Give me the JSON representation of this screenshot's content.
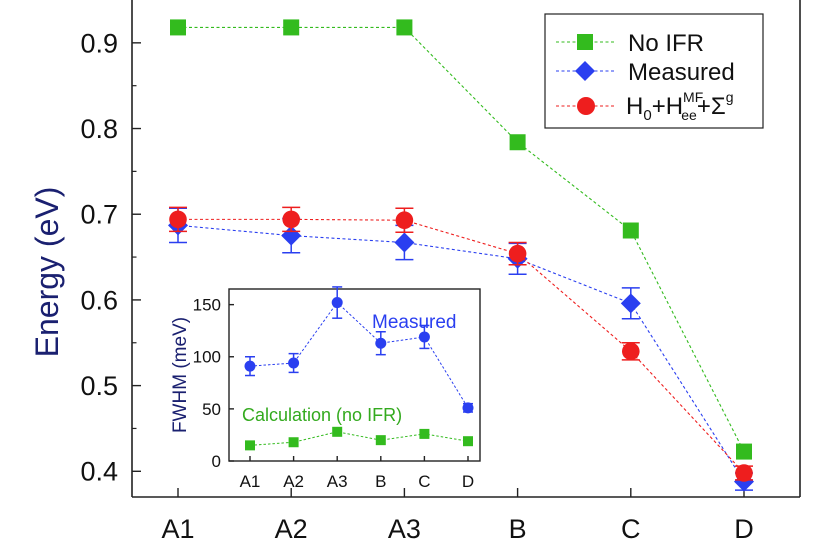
{
  "chart_data": [
    {
      "type": "line",
      "title": "",
      "xlabel": "",
      "ylabel": "Energy (eV)",
      "categories": [
        "A1",
        "A2",
        "A3",
        "B",
        "C",
        "D"
      ],
      "ylim": [
        0.37,
        0.95
      ],
      "yticks": [
        "0.4",
        "0.5",
        "0.6",
        "0.7",
        "0.8",
        "0.9"
      ],
      "ytick_values": [
        0.4,
        0.5,
        0.6,
        0.7,
        0.8,
        0.9
      ],
      "legend_position": "top-right",
      "series": [
        {
          "name": "No IFR",
          "marker": "square",
          "color": "#33bb1e",
          "values": [
            0.918,
            0.918,
            0.918,
            0.784,
            0.681,
            0.423
          ],
          "errors": []
        },
        {
          "name": "Measured",
          "marker": "diamond",
          "color": "#2a3ff0",
          "values": [
            0.687,
            0.675,
            0.667,
            0.648,
            0.596,
            0.388
          ],
          "errors": [
            0.02,
            0.02,
            0.02,
            0.018,
            0.018,
            0.01
          ]
        },
        {
          "name": "H0+HeeMF+Σg",
          "marker": "circle",
          "color": "#ee1e1e",
          "values": [
            0.694,
            0.694,
            0.693,
            0.654,
            0.54,
            0.398
          ],
          "errors": [
            0.014,
            0.014,
            0.014,
            0.013,
            0.01,
            0.008
          ]
        }
      ],
      "legend": {
        "no_ifr": "No IFR",
        "measured": "Measured",
        "model_prefix": "H",
        "model_sub0": "0",
        "model_plus1": "+H",
        "model_sup_mf": "MF",
        "model_sub_ee": "ee",
        "model_plus2": "+Σ",
        "model_sup_g": "g"
      }
    },
    {
      "type": "line",
      "title": "",
      "xlabel": "",
      "ylabel": "FWHM (meV)",
      "categories": [
        "A1",
        "A2",
        "A3",
        "B",
        "C",
        "D"
      ],
      "ylim": [
        0,
        165
      ],
      "yticks": [
        "0",
        "50",
        "100",
        "150"
      ],
      "ytick_values": [
        0,
        50,
        100,
        150
      ],
      "annotations": {
        "measured": "Measured",
        "calculation": "Calculation (no IFR)"
      },
      "series": [
        {
          "name": "Measured",
          "marker": "circle",
          "color": "#2a3ff0",
          "values": [
            91,
            94,
            152,
            113,
            119,
            51
          ],
          "errors": [
            9,
            9,
            15,
            11,
            11,
            4
          ]
        },
        {
          "name": "Calculation (no IFR)",
          "marker": "square",
          "color": "#33bb1e",
          "values": [
            15,
            18,
            28,
            20,
            26,
            19
          ],
          "errors": []
        }
      ]
    }
  ]
}
